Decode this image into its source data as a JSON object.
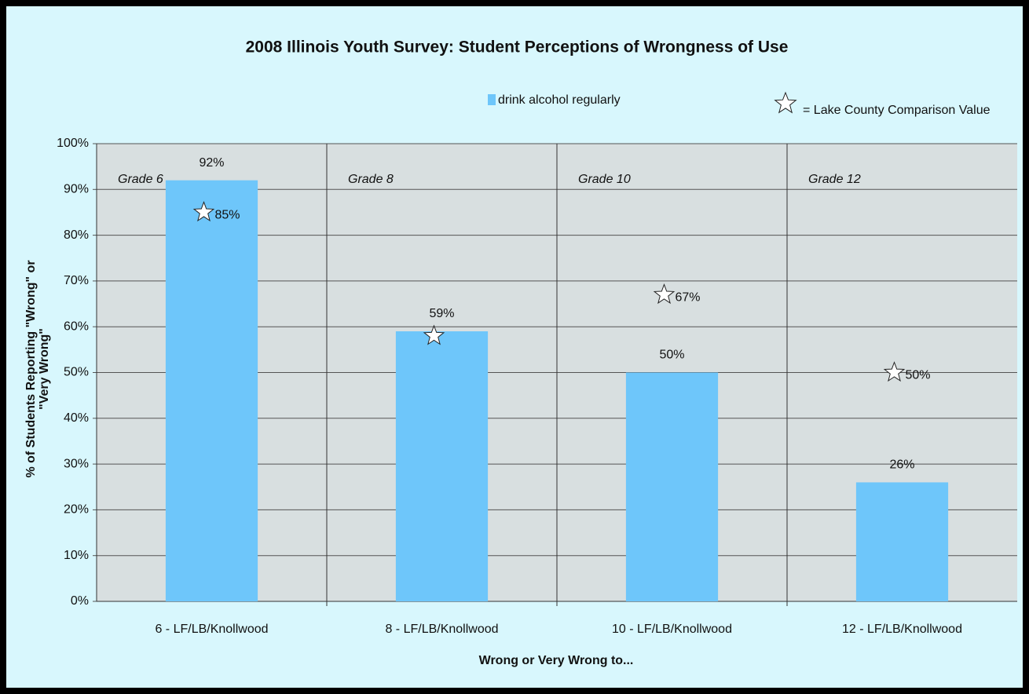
{
  "chart_data": {
    "type": "bar",
    "title": "2008 Illinois Youth Survey:  Student Perceptions of Wrongness of Use",
    "xlabel": "Wrong or Very Wrong to...",
    "ylabel": [
      "% of Students Reporting \"Wrong\" or",
      "\"Very Wrong\""
    ],
    "categories": [
      "6 - LF/LB/Knollwood",
      "8 - LF/LB/Knollwood",
      "10 - LF/LB/Knollwood",
      "12 - LF/LB/Knollwood"
    ],
    "panel_labels": [
      "Grade 6",
      "Grade 8",
      "Grade 10",
      "Grade 12"
    ],
    "series": [
      {
        "name": "drink alcohol regularly",
        "color": "#6ec6fa",
        "values": [
          92,
          59,
          50,
          26
        ],
        "value_labels": [
          "92%",
          "59%",
          "50%",
          "26%"
        ]
      },
      {
        "name": "= Lake County Comparison Value",
        "marker": "star",
        "color": "#ffffff",
        "values": [
          85,
          58,
          67,
          50
        ],
        "value_labels": [
          "85%",
          null,
          "67%",
          "50%"
        ]
      }
    ],
    "ylim": [
      0,
      100
    ],
    "yticks": [
      {
        "value": 0,
        "label": "0%"
      },
      {
        "value": 10,
        "label": "10%"
      },
      {
        "value": 20,
        "label": "20%"
      },
      {
        "value": 30,
        "label": "30%"
      },
      {
        "value": 40,
        "label": "40%"
      },
      {
        "value": 50,
        "label": "50%"
      },
      {
        "value": 60,
        "label": "60%"
      },
      {
        "value": 70,
        "label": "70%"
      },
      {
        "value": 80,
        "label": "80%"
      },
      {
        "value": 90,
        "label": "90%"
      },
      {
        "value": 100,
        "label": "100%"
      }
    ],
    "grid": true
  }
}
